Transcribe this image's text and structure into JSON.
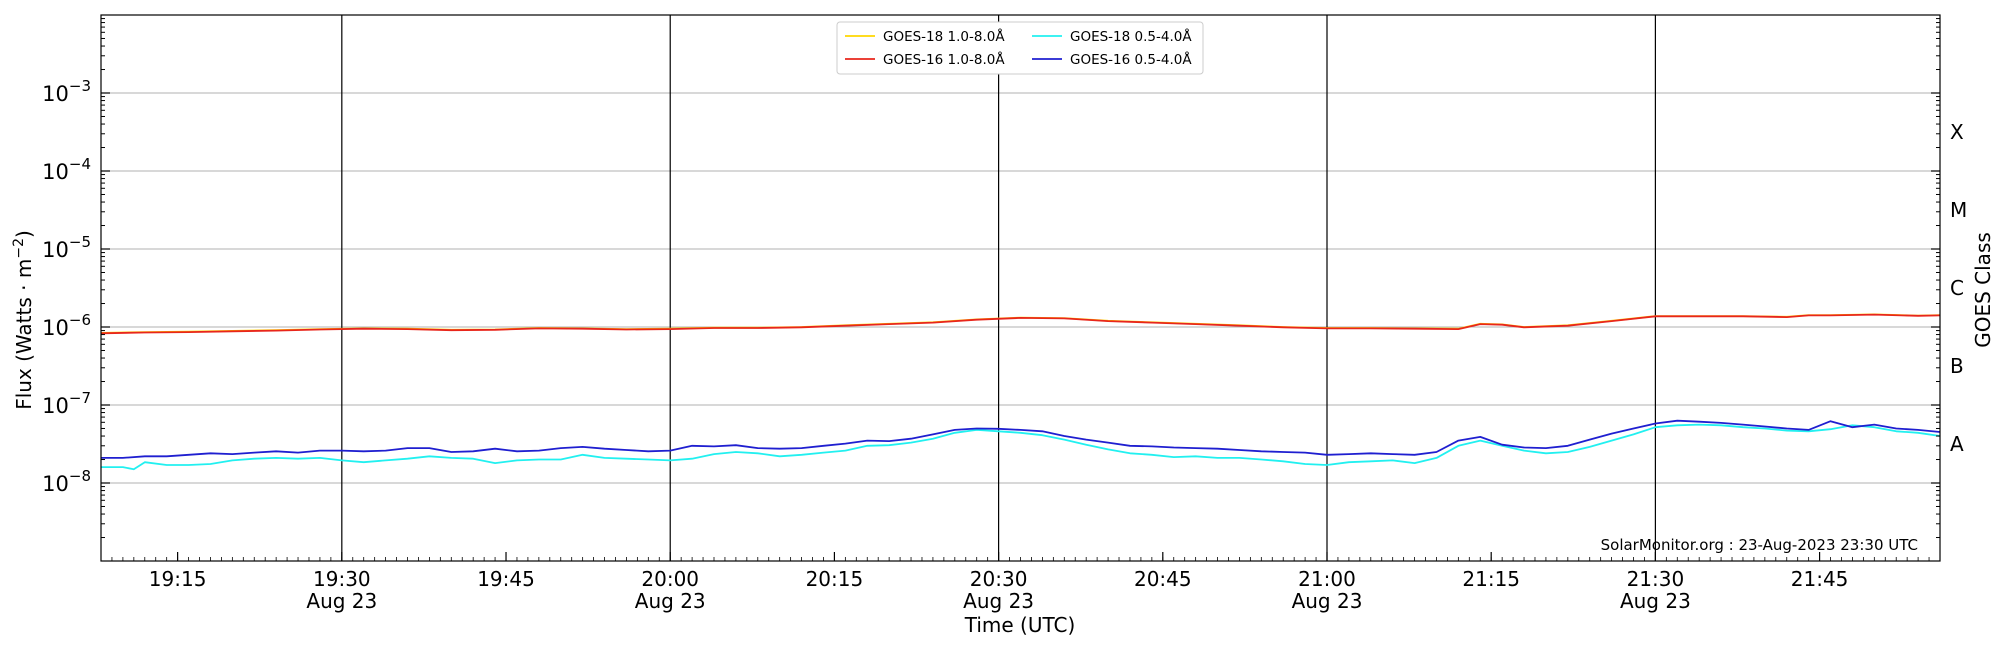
{
  "chart_data": {
    "type": "line",
    "xlabel": "Time (UTC)",
    "ylabel_main": "Flux (Watts · m",
    "ylabel_exp": "−2",
    "ylabel_close": ")",
    "right_label": "GOES Class",
    "watermark": "SolarMonitor.org : 23-Aug-2023 23:30 UTC",
    "x_range": [
      "19:08",
      "21:56"
    ],
    "x_range_min": [
      0,
      168
    ],
    "y_scale": "log",
    "y_range": [
      1e-09,
      0.01
    ],
    "grid": "horizontal at decades, vertical at half-hours",
    "legend_placement": "top-center",
    "y_ticks": [
      {
        "base": "10",
        "exp": "−3",
        "v": -3
      },
      {
        "base": "10",
        "exp": "−4",
        "v": -4
      },
      {
        "base": "10",
        "exp": "−5",
        "v": -5
      },
      {
        "base": "10",
        "exp": "−6",
        "v": -6
      },
      {
        "base": "10",
        "exp": "−7",
        "v": -7
      },
      {
        "base": "10",
        "exp": "−8",
        "v": -8
      }
    ],
    "x_ticks": [
      {
        "t": 7,
        "label": "19:15",
        "date": ""
      },
      {
        "t": 22,
        "label": "19:30",
        "date": "Aug 23"
      },
      {
        "t": 37,
        "label": "19:45",
        "date": ""
      },
      {
        "t": 52,
        "label": "20:00",
        "date": "Aug 23"
      },
      {
        "t": 67,
        "label": "20:15",
        "date": ""
      },
      {
        "t": 82,
        "label": "20:30",
        "date": "Aug 23"
      },
      {
        "t": 97,
        "label": "20:45",
        "date": ""
      },
      {
        "t": 112,
        "label": "21:00",
        "date": "Aug 23"
      },
      {
        "t": 127,
        "label": "21:15",
        "date": ""
      },
      {
        "t": 142,
        "label": "21:30",
        "date": "Aug 23"
      },
      {
        "t": 157,
        "label": "21:45",
        "date": ""
      }
    ],
    "class_labels": [
      {
        "label": "X",
        "v": -3.5
      },
      {
        "label": "M",
        "v": -4.5
      },
      {
        "label": "C",
        "v": -5.5
      },
      {
        "label": "B",
        "v": -6.5
      },
      {
        "label": "A",
        "v": -7.5
      }
    ],
    "colors": {
      "goes18_long": "#ffd700",
      "goes16_long": "#e8261c",
      "goes18_short": "#22f0f0",
      "goes16_short": "#1f1fd0",
      "grid": "#b0b0b0",
      "vline": "#000000"
    },
    "series": [
      {
        "name": "GOES-18 1.0-8.0Å",
        "color": "#ffd700",
        "x": [
          0,
          4,
          8,
          12,
          16,
          20,
          24,
          28,
          32,
          36,
          40,
          44,
          48,
          52,
          56,
          60,
          64,
          68,
          72,
          76,
          80,
          84,
          88,
          92,
          96,
          100,
          104,
          108,
          112,
          116,
          120,
          124,
          126,
          128,
          130,
          134,
          138,
          142,
          146,
          150,
          154,
          156,
          158,
          162,
          166,
          168
        ],
        "y": [
          8.4e-07,
          8.6e-07,
          8.7e-07,
          8.9e-07,
          9.1e-07,
          9.4e-07,
          9.6e-07,
          9.5e-07,
          9.2e-07,
          9.3e-07,
          9.7e-07,
          9.6e-07,
          9.4e-07,
          9.5e-07,
          9.8e-07,
          9.8e-07,
          1e-06,
          1.05e-06,
          1.1e-06,
          1.15e-06,
          1.25e-06,
          1.32e-06,
          1.3e-06,
          1.2e-06,
          1.15e-06,
          1.1e-06,
          1.05e-06,
          1e-06,
          9.7e-07,
          9.7e-07,
          9.6e-07,
          9.5e-07,
          1.1e-06,
          1.08e-06,
          1e-06,
          1.05e-06,
          1.2e-06,
          1.38e-06,
          1.38e-06,
          1.38e-06,
          1.35e-06,
          1.42e-06,
          1.42e-06,
          1.45e-06,
          1.4e-06,
          1.42e-06
        ]
      },
      {
        "name": "GOES-16 1.0-8.0Å",
        "color": "#e8261c",
        "x": [
          0,
          4,
          8,
          12,
          16,
          20,
          24,
          28,
          32,
          36,
          40,
          44,
          48,
          52,
          56,
          60,
          64,
          68,
          72,
          76,
          80,
          84,
          88,
          92,
          96,
          100,
          104,
          108,
          112,
          116,
          120,
          124,
          126,
          128,
          130,
          134,
          138,
          142,
          146,
          150,
          154,
          156,
          158,
          162,
          166,
          168
        ],
        "y": [
          8.3e-07,
          8.5e-07,
          8.6e-07,
          8.8e-07,
          9e-07,
          9.3e-07,
          9.5e-07,
          9.4e-07,
          9.1e-07,
          9.2e-07,
          9.6e-07,
          9.5e-07,
          9.3e-07,
          9.4e-07,
          9.7e-07,
          9.7e-07,
          9.9e-07,
          1.04e-06,
          1.09e-06,
          1.14e-06,
          1.24e-06,
          1.31e-06,
          1.29e-06,
          1.19e-06,
          1.14e-06,
          1.09e-06,
          1.04e-06,
          9.9e-07,
          9.6e-07,
          9.6e-07,
          9.5e-07,
          9.4e-07,
          1.09e-06,
          1.07e-06,
          9.9e-07,
          1.04e-06,
          1.19e-06,
          1.37e-06,
          1.37e-06,
          1.37e-06,
          1.34e-06,
          1.41e-06,
          1.41e-06,
          1.44e-06,
          1.39e-06,
          1.41e-06
        ]
      },
      {
        "name": "GOES-18 0.5-4.0Å",
        "color": "#22f0f0",
        "x": [
          0,
          2,
          3,
          4,
          6,
          8,
          10,
          12,
          14,
          16,
          18,
          20,
          22,
          24,
          26,
          28,
          30,
          32,
          34,
          36,
          38,
          40,
          42,
          44,
          46,
          48,
          50,
          52,
          54,
          56,
          58,
          60,
          62,
          64,
          66,
          68,
          70,
          72,
          74,
          76,
          78,
          80,
          82,
          84,
          86,
          88,
          90,
          92,
          94,
          96,
          98,
          100,
          102,
          104,
          106,
          108,
          110,
          112,
          114,
          116,
          118,
          120,
          122,
          124,
          126,
          128,
          130,
          132,
          134,
          136,
          138,
          140,
          142,
          144,
          146,
          148,
          150,
          152,
          154,
          156,
          158,
          160,
          162,
          164,
          166,
          168
        ],
        "y": [
          1.6e-08,
          1.6e-08,
          1.5e-08,
          1.85e-08,
          1.7e-08,
          1.7e-08,
          1.75e-08,
          1.95e-08,
          2.05e-08,
          2.1e-08,
          2.05e-08,
          2.1e-08,
          1.95e-08,
          1.85e-08,
          1.95e-08,
          2.05e-08,
          2.2e-08,
          2.1e-08,
          2.05e-08,
          1.8e-08,
          1.95e-08,
          2e-08,
          2e-08,
          2.3e-08,
          2.1e-08,
          2.05e-08,
          2e-08,
          1.95e-08,
          2.05e-08,
          2.35e-08,
          2.5e-08,
          2.4e-08,
          2.2e-08,
          2.3e-08,
          2.45e-08,
          2.6e-08,
          3e-08,
          3.05e-08,
          3.3e-08,
          3.7e-08,
          4.4e-08,
          4.8e-08,
          4.6e-08,
          4.4e-08,
          4.1e-08,
          3.6e-08,
          3.1e-08,
          2.7e-08,
          2.4e-08,
          2.3e-08,
          2.15e-08,
          2.2e-08,
          2.1e-08,
          2.1e-08,
          2e-08,
          1.9e-08,
          1.75e-08,
          1.7e-08,
          1.85e-08,
          1.9e-08,
          1.95e-08,
          1.8e-08,
          2.1e-08,
          3e-08,
          3.5e-08,
          3e-08,
          2.6e-08,
          2.4e-08,
          2.5e-08,
          2.9e-08,
          3.5e-08,
          4.2e-08,
          5.2e-08,
          5.5e-08,
          5.6e-08,
          5.5e-08,
          5.2e-08,
          5e-08,
          4.7e-08,
          4.6e-08,
          4.9e-08,
          5.5e-08,
          5.2e-08,
          4.6e-08,
          4.4e-08,
          4e-08
        ]
      },
      {
        "name": "GOES-16 0.5-4.0Å",
        "color": "#1f1fd0",
        "x": [
          0,
          2,
          4,
          6,
          8,
          10,
          12,
          14,
          16,
          18,
          20,
          22,
          24,
          26,
          28,
          30,
          32,
          34,
          36,
          38,
          40,
          42,
          44,
          46,
          48,
          50,
          52,
          54,
          56,
          58,
          60,
          62,
          64,
          66,
          68,
          70,
          72,
          74,
          76,
          78,
          80,
          82,
          84,
          86,
          88,
          90,
          92,
          94,
          96,
          98,
          100,
          102,
          104,
          106,
          108,
          110,
          112,
          114,
          116,
          118,
          120,
          122,
          124,
          126,
          128,
          130,
          132,
          134,
          136,
          138,
          140,
          142,
          144,
          146,
          148,
          150,
          152,
          154,
          156,
          158,
          160,
          162,
          164,
          166,
          168
        ],
        "y": [
          2.1e-08,
          2.1e-08,
          2.2e-08,
          2.2e-08,
          2.3e-08,
          2.4e-08,
          2.35e-08,
          2.45e-08,
          2.55e-08,
          2.45e-08,
          2.6e-08,
          2.6e-08,
          2.55e-08,
          2.6e-08,
          2.8e-08,
          2.8e-08,
          2.5e-08,
          2.55e-08,
          2.75e-08,
          2.55e-08,
          2.6e-08,
          2.8e-08,
          2.9e-08,
          2.75e-08,
          2.65e-08,
          2.55e-08,
          2.6e-08,
          3e-08,
          2.95e-08,
          3.05e-08,
          2.8e-08,
          2.75e-08,
          2.8e-08,
          3e-08,
          3.2e-08,
          3.5e-08,
          3.45e-08,
          3.7e-08,
          4.2e-08,
          4.8e-08,
          5e-08,
          4.95e-08,
          4.8e-08,
          4.6e-08,
          4e-08,
          3.6e-08,
          3.3e-08,
          3e-08,
          2.95e-08,
          2.85e-08,
          2.8e-08,
          2.75e-08,
          2.65e-08,
          2.55e-08,
          2.5e-08,
          2.45e-08,
          2.3e-08,
          2.35e-08,
          2.4e-08,
          2.35e-08,
          2.3e-08,
          2.5e-08,
          3.5e-08,
          3.9e-08,
          3.1e-08,
          2.85e-08,
          2.8e-08,
          3e-08,
          3.6e-08,
          4.3e-08,
          5e-08,
          5.8e-08,
          6.3e-08,
          6.1e-08,
          5.9e-08,
          5.6e-08,
          5.3e-08,
          5e-08,
          4.8e-08,
          6.2e-08,
          5.2e-08,
          5.6e-08,
          5e-08,
          4.8e-08,
          4.5e-08
        ]
      }
    ]
  }
}
